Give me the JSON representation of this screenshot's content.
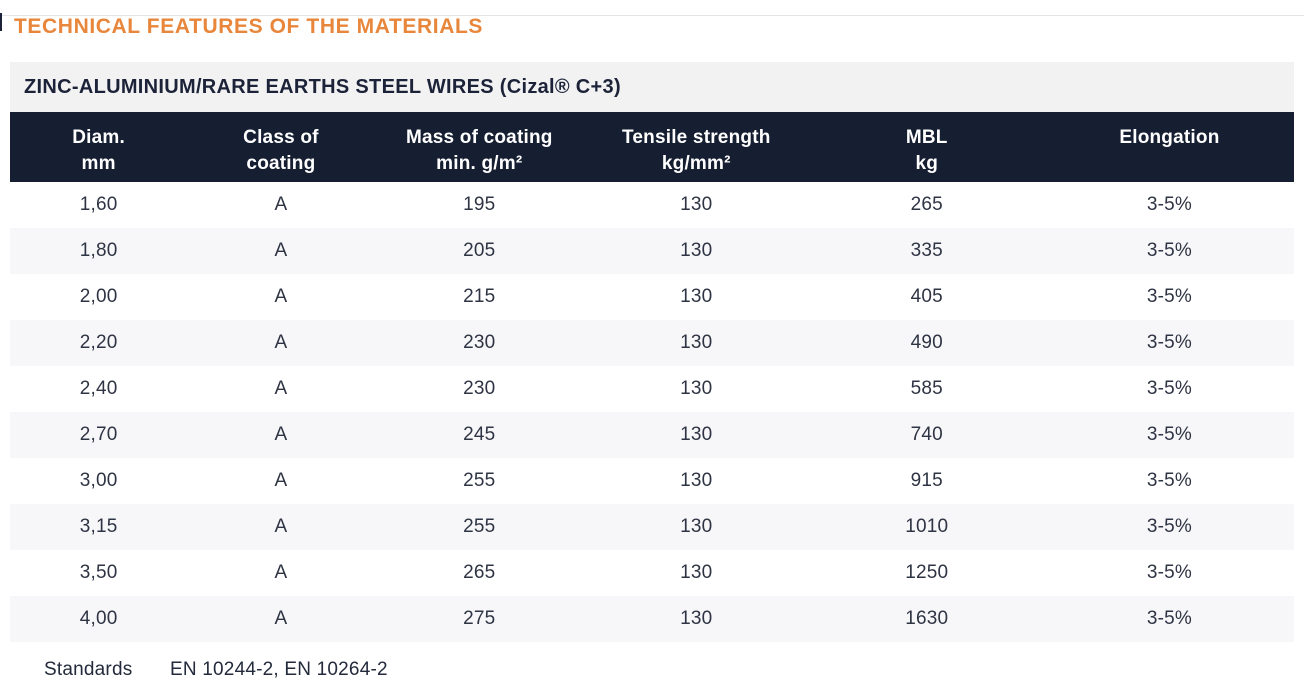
{
  "page": {
    "title": "TECHNICAL FEATURES OF THE MATERIALS"
  },
  "table": {
    "subtitle": "ZINC-ALUMINIUM/RARE EARTHS STEEL WIRES (Cizal® C+3)",
    "columns": [
      {
        "line1": "Diam.",
        "line2": "mm"
      },
      {
        "line1": "Class of",
        "line2": "coating"
      },
      {
        "line1": "Mass of coating",
        "line2": "min. g/m²"
      },
      {
        "line1": "Tensile strength",
        "line2": "kg/mm²"
      },
      {
        "line1": "MBL",
        "line2": "kg"
      },
      {
        "line1": "Elongation",
        "line2": ""
      }
    ],
    "rows": [
      [
        "1,60",
        "A",
        "195",
        "130",
        "265",
        "3-5%"
      ],
      [
        "1,80",
        "A",
        "205",
        "130",
        "335",
        "3-5%"
      ],
      [
        "2,00",
        "A",
        "215",
        "130",
        "405",
        "3-5%"
      ],
      [
        "2,20",
        "A",
        "230",
        "130",
        "490",
        "3-5%"
      ],
      [
        "2,40",
        "A",
        "230",
        "130",
        "585",
        "3-5%"
      ],
      [
        "2,70",
        "A",
        "245",
        "130",
        "740",
        "3-5%"
      ],
      [
        "3,00",
        "A",
        "255",
        "130",
        "915",
        "3-5%"
      ],
      [
        "3,15",
        "A",
        "255",
        "130",
        "1010",
        "3-5%"
      ],
      [
        "3,50",
        "A",
        "265",
        "130",
        "1250",
        "3-5%"
      ],
      [
        "4,00",
        "A",
        "275",
        "130",
        "1630",
        "3-5%"
      ]
    ],
    "standards": {
      "label": "Standards",
      "value": "EN 10244-2, EN 10264-2"
    }
  },
  "colors": {
    "accent_orange": "#e8873b",
    "header_navy": "#161e32",
    "subtitle_bg": "#f2f2f3",
    "alt_row_bg": "#f7f7f9",
    "body_text": "#2e3443"
  }
}
